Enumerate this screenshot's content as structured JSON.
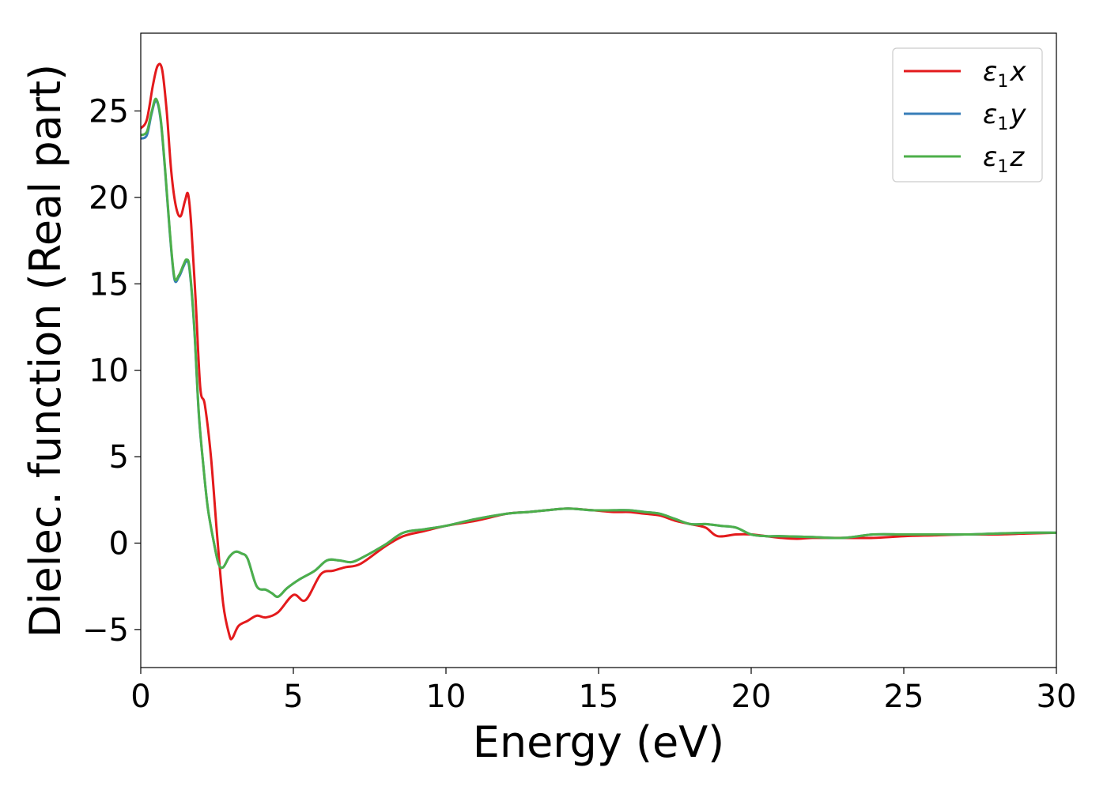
{
  "chart_data": {
    "type": "line",
    "title": "",
    "xlabel": "Energy (eV)",
    "ylabel": "Dielec. function (Real part)",
    "xlim": [
      0,
      30
    ],
    "ylim": [
      -7.2,
      29.5
    ],
    "xticks": [
      0,
      5,
      10,
      15,
      20,
      25,
      30
    ],
    "yticks": [
      -5,
      0,
      5,
      10,
      15,
      20,
      25
    ],
    "xtick_labels": [
      "0",
      "5",
      "10",
      "15",
      "20",
      "25",
      "30"
    ],
    "ytick_labels": [
      "−5",
      "0",
      "5",
      "10",
      "15",
      "20",
      "25"
    ],
    "grid": false,
    "legend_position": "top-right",
    "series": [
      {
        "name": "ε₁x",
        "legend_base": "ε",
        "legend_sub": "1",
        "legend_var": "x",
        "color": "#e31a1c",
        "x": [
          0,
          0.2,
          0.4,
          0.55,
          0.7,
          0.85,
          1.0,
          1.15,
          1.3,
          1.45,
          1.55,
          1.65,
          1.8,
          1.95,
          2.1,
          2.3,
          2.5,
          2.7,
          2.9,
          3.0,
          3.2,
          3.5,
          3.8,
          4.1,
          4.5,
          5.0,
          5.4,
          5.9,
          6.3,
          6.7,
          7.2,
          8.0,
          8.6,
          9.3,
          10.0,
          11.0,
          12.0,
          12.7,
          13.3,
          14.0,
          14.8,
          15.5,
          16.0,
          16.5,
          17.0,
          17.5,
          18.0,
          18.5,
          18.9,
          19.5,
          20.0,
          20.5,
          21.0,
          21.5,
          22.0,
          23.0,
          24.0,
          25.0,
          26.0,
          27.0,
          28.0,
          29.0,
          30.0
        ],
        "y": [
          24.0,
          24.5,
          26.5,
          27.6,
          27.4,
          25.0,
          21.5,
          19.5,
          18.9,
          19.8,
          20.2,
          18.5,
          14.0,
          9.0,
          8.0,
          5.0,
          0.5,
          -3.5,
          -5.3,
          -5.5,
          -4.8,
          -4.5,
          -4.2,
          -4.3,
          -4.0,
          -3.0,
          -3.3,
          -1.8,
          -1.6,
          -1.4,
          -1.2,
          -0.2,
          0.4,
          0.7,
          1.0,
          1.3,
          1.7,
          1.8,
          1.9,
          2.0,
          1.9,
          1.8,
          1.8,
          1.7,
          1.6,
          1.3,
          1.1,
          0.9,
          0.4,
          0.5,
          0.5,
          0.4,
          0.3,
          0.25,
          0.3,
          0.3,
          0.3,
          0.4,
          0.45,
          0.5,
          0.5,
          0.55,
          0.6
        ]
      },
      {
        "name": "ε₁y",
        "legend_base": "ε",
        "legend_sub": "1",
        "legend_var": "y",
        "color": "#377eb8",
        "x": [
          0,
          0.2,
          0.35,
          0.5,
          0.65,
          0.8,
          0.95,
          1.1,
          1.25,
          1.4,
          1.5,
          1.6,
          1.75,
          1.9,
          2.05,
          2.2,
          2.4,
          2.55,
          2.7,
          2.9,
          3.1,
          3.3,
          3.5,
          3.8,
          4.1,
          4.3,
          4.5,
          4.8,
          5.2,
          5.7,
          6.1,
          6.5,
          6.9,
          7.3,
          8.0,
          8.6,
          9.3,
          10.0,
          11.0,
          12.0,
          12.7,
          13.3,
          14.0,
          14.8,
          15.5,
          16.0,
          16.5,
          17.0,
          17.5,
          18.0,
          18.5,
          19.0,
          19.5,
          20.0,
          20.5,
          21.0,
          22.0,
          23.0,
          24.0,
          25.0,
          26.0,
          27.0,
          28.0,
          29.0,
          30.0
        ],
        "y": [
          23.4,
          23.6,
          24.8,
          25.6,
          24.5,
          21.5,
          18.0,
          15.3,
          15.4,
          16.0,
          16.3,
          15.8,
          12.5,
          7.5,
          4.5,
          2.0,
          0.0,
          -1.2,
          -1.4,
          -0.8,
          -0.5,
          -0.6,
          -0.9,
          -2.5,
          -2.7,
          -2.9,
          -3.1,
          -2.6,
          -2.1,
          -1.6,
          -1.0,
          -1.0,
          -1.1,
          -0.8,
          -0.1,
          0.6,
          0.8,
          1.0,
          1.4,
          1.7,
          1.8,
          1.9,
          2.0,
          1.9,
          1.9,
          1.9,
          1.8,
          1.7,
          1.4,
          1.1,
          1.1,
          1.0,
          0.9,
          0.5,
          0.4,
          0.4,
          0.35,
          0.3,
          0.5,
          0.5,
          0.5,
          0.5,
          0.55,
          0.6,
          0.6
        ]
      },
      {
        "name": "ε₁z",
        "legend_base": "ε",
        "legend_sub": "1",
        "legend_var": "z",
        "color": "#4daf4a",
        "x": [
          0,
          0.2,
          0.35,
          0.5,
          0.65,
          0.8,
          0.95,
          1.1,
          1.25,
          1.4,
          1.5,
          1.6,
          1.75,
          1.9,
          2.05,
          2.2,
          2.4,
          2.55,
          2.7,
          2.9,
          3.1,
          3.3,
          3.5,
          3.8,
          4.1,
          4.3,
          4.5,
          4.8,
          5.2,
          5.7,
          6.1,
          6.5,
          6.9,
          7.3,
          8.0,
          8.6,
          9.3,
          10.0,
          11.0,
          12.0,
          12.7,
          13.3,
          14.0,
          14.8,
          15.5,
          16.0,
          16.5,
          17.0,
          17.5,
          18.0,
          18.5,
          19.0,
          19.5,
          20.0,
          20.5,
          21.0,
          22.0,
          23.0,
          24.0,
          25.0,
          26.0,
          27.0,
          28.0,
          29.0,
          30.0
        ],
        "y": [
          23.6,
          23.8,
          24.9,
          25.7,
          24.6,
          21.6,
          18.1,
          15.4,
          15.5,
          16.1,
          16.4,
          15.9,
          12.6,
          7.6,
          4.5,
          2.0,
          0.0,
          -1.2,
          -1.4,
          -0.8,
          -0.5,
          -0.6,
          -0.9,
          -2.5,
          -2.7,
          -2.9,
          -3.1,
          -2.6,
          -2.1,
          -1.6,
          -1.0,
          -1.0,
          -1.1,
          -0.8,
          -0.1,
          0.6,
          0.8,
          1.0,
          1.4,
          1.7,
          1.8,
          1.9,
          2.0,
          1.9,
          1.9,
          1.9,
          1.8,
          1.7,
          1.4,
          1.1,
          1.1,
          1.0,
          0.9,
          0.5,
          0.4,
          0.4,
          0.35,
          0.3,
          0.5,
          0.5,
          0.5,
          0.5,
          0.55,
          0.6,
          0.6
        ]
      }
    ]
  }
}
